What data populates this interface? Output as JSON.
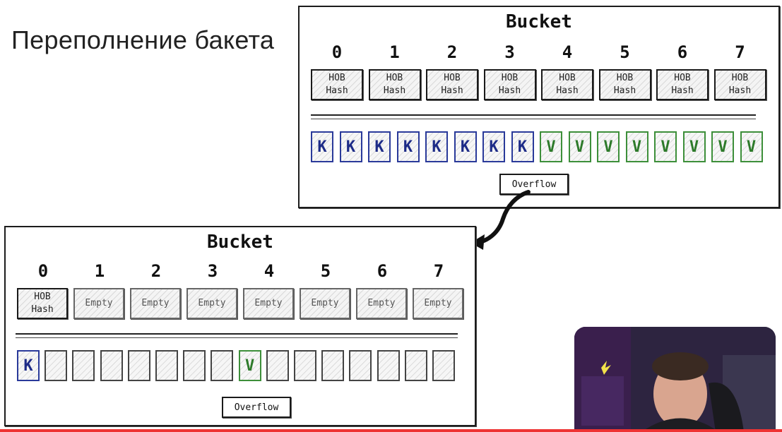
{
  "slide_title": "Переполнение бакета",
  "bucket_top": {
    "title": "Bucket",
    "slots": [
      "0",
      "1",
      "2",
      "3",
      "4",
      "5",
      "6",
      "7"
    ],
    "tophash": [
      [
        "HOB",
        "Hash"
      ],
      [
        "HOB",
        "Hash"
      ],
      [
        "HOB",
        "Hash"
      ],
      [
        "HOB",
        "Hash"
      ],
      [
        "HOB",
        "Hash"
      ],
      [
        "HOB",
        "Hash"
      ],
      [
        "HOB",
        "Hash"
      ],
      [
        "HOB",
        "Hash"
      ]
    ],
    "keys": [
      "K",
      "K",
      "K",
      "K",
      "K",
      "K",
      "K",
      "K"
    ],
    "values": [
      "V",
      "V",
      "V",
      "V",
      "V",
      "V",
      "V",
      "V"
    ],
    "overflow_label": "Overflow"
  },
  "bucket_bottom": {
    "title": "Bucket",
    "slots": [
      "0",
      "1",
      "2",
      "3",
      "4",
      "5",
      "6",
      "7"
    ],
    "tophash": [
      [
        "HOB",
        "Hash"
      ],
      [
        "Empty"
      ],
      [
        "Empty"
      ],
      [
        "Empty"
      ],
      [
        "Empty"
      ],
      [
        "Empty"
      ],
      [
        "Empty"
      ],
      [
        "Empty"
      ]
    ],
    "keys": [
      "K",
      "",
      "",
      "",
      "",
      "",
      "",
      ""
    ],
    "values": [
      "V",
      "",
      "",
      "",
      "",
      "",
      "",
      ""
    ],
    "overflow_label": "Overflow"
  },
  "colors": {
    "key": "#1d2b87",
    "value": "#2d7a2a",
    "border": "#1a1a1a"
  },
  "icons": {
    "arrow": "curved-arrow-icon"
  }
}
